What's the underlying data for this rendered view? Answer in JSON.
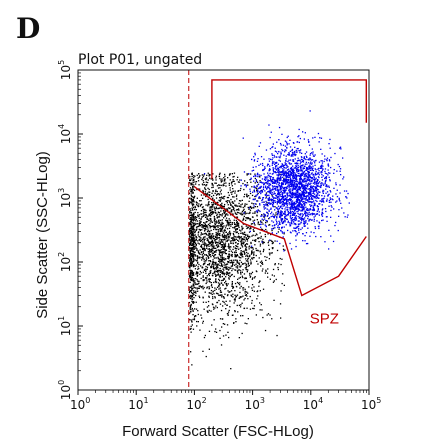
{
  "panel_label": "D",
  "chart_data": {
    "type": "scatter",
    "title": "Plot P01, ungated",
    "xlabel": "Forward Scatter (FSC-HLog)",
    "ylabel": "Side Scatter (SSC-HLog)",
    "x_scale": "log",
    "y_scale": "log",
    "xlim": [
      1,
      100000
    ],
    "ylim": [
      1,
      100000
    ],
    "x_ticks": [
      {
        "base": "10",
        "exp": "0"
      },
      {
        "base": "10",
        "exp": "1"
      },
      {
        "base": "10",
        "exp": "2"
      },
      {
        "base": "10",
        "exp": "3"
      },
      {
        "base": "10",
        "exp": "4"
      },
      {
        "base": "10",
        "exp": "5"
      }
    ],
    "y_ticks": [
      {
        "base": "10",
        "exp": "0"
      },
      {
        "base": "10",
        "exp": "1"
      },
      {
        "base": "10",
        "exp": "2"
      },
      {
        "base": "10",
        "exp": "3"
      },
      {
        "base": "10",
        "exp": "4"
      },
      {
        "base": "10",
        "exp": "5"
      }
    ],
    "grid": false,
    "threshold_x": 80,
    "populations": [
      {
        "color": "#000000",
        "center_x": 250,
        "center_y": 200,
        "spread_log": 0.45,
        "count": 2600
      },
      {
        "color": "#0000ee",
        "center_x": 5000,
        "center_y": 1400,
        "spread_log": 0.32,
        "count": 2200
      }
    ],
    "gates": [
      {
        "label": "",
        "color": "#c00000",
        "points": [
          [
            200,
            2000
          ],
          [
            200,
            70000
          ],
          [
            90000,
            70000
          ],
          [
            90000,
            15000
          ]
        ]
      },
      {
        "label": "SPZ",
        "color": "#c00000",
        "points": [
          [
            100,
            1500
          ],
          [
            700,
            400
          ],
          [
            3500,
            230
          ],
          [
            7000,
            30
          ],
          [
            30000,
            60
          ],
          [
            90000,
            250
          ]
        ]
      }
    ]
  },
  "colors": {
    "gate": "#c00000",
    "spz_events": "#000000",
    "other_events": "#0000ee"
  }
}
